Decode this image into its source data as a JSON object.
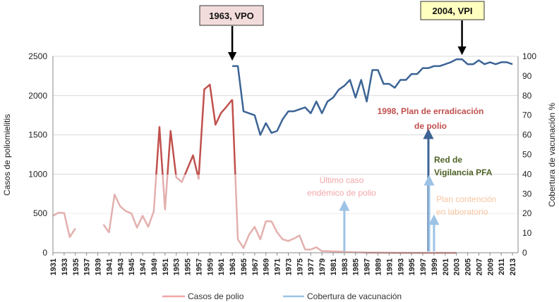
{
  "chart_data": {
    "type": "line",
    "title": "",
    "xlabel": "",
    "ylabel_left": "Casos de poliomielitis",
    "ylabel_right": "Cobertura de vacunación %",
    "x_ticks": [
      "1931",
      "1933",
      "1935",
      "1937",
      "1939",
      "1941",
      "1943",
      "1945",
      "1947",
      "1949",
      "1951",
      "1953",
      "1955",
      "1957",
      "1959",
      "1961",
      "1963",
      "1965",
      "1967",
      "1969",
      "1971",
      "1973",
      "1975",
      "1977",
      "1979",
      "1981",
      "1983",
      "1985",
      "1987",
      "1989",
      "1991",
      "1993",
      "1995",
      "1997",
      "1999",
      "2001",
      "2003",
      "2005",
      "2007",
      "2009",
      "2011",
      "2013"
    ],
    "ylim_left": [
      0,
      2500
    ],
    "y_ticks_left": [
      0,
      500,
      1000,
      1500,
      2000,
      2500
    ],
    "ylim_right": [
      0,
      100
    ],
    "y_ticks_right": [
      0,
      10,
      20,
      30,
      40,
      50,
      60,
      70,
      80,
      90,
      100
    ],
    "grid": "horizontal",
    "legend_position": "bottom",
    "series": [
      {
        "name": "Casos de polio",
        "axis": "left",
        "color": "#c0504d",
        "faded_color": "#f4a6aa",
        "segments": [
          {
            "x": [
              1931,
              1932,
              1933,
              1934,
              1935,
              1936
            ],
            "y": [
              470,
              510,
              505,
              200,
              310,
              null
            ]
          },
          {
            "x": [
              1940,
              1941,
              1942,
              1943,
              1944,
              1945,
              1946,
              1947,
              1948,
              1949,
              1950,
              1951,
              1952,
              1953,
              1954,
              1955,
              1956,
              1957,
              1958,
              1959,
              1960,
              1961,
              1962,
              1963
            ],
            "y": [
              360,
              260,
              740,
              590,
              530,
              500,
              320,
              470,
              330,
              530,
              1600,
              550,
              1550,
              960,
              900,
              1070,
              1240,
              940,
              2080,
              2140,
              1630,
              1780,
              1860,
              1950
            ]
          },
          {
            "x": [
              1963,
              1964,
              1965,
              1966,
              1967,
              1968,
              1969,
              1970,
              1971,
              1972,
              1973,
              1974,
              1975,
              1976,
              1977,
              1978,
              1979,
              1980,
              1981,
              1982,
              1983,
              1984,
              1985,
              1986,
              1987,
              1988,
              1989,
              1990,
              1991,
              1992,
              1993,
              1994,
              1995,
              1996,
              1997,
              1998,
              1999,
              2000,
              2001,
              2002,
              2003
            ],
            "y": [
              1950,
              170,
              60,
              230,
              330,
              170,
              400,
              400,
              260,
              170,
              150,
              180,
              220,
              40,
              40,
              70,
              20,
              20,
              15,
              15,
              10,
              8,
              5,
              5,
              3,
              3,
              2,
              1,
              1,
              0,
              0,
              0,
              0,
              0,
              0,
              0,
              0,
              0,
              0,
              0,
              0
            ]
          }
        ]
      },
      {
        "name": "Cobertura de vacunación",
        "axis": "right",
        "color": "#3c6496",
        "segments": [
          {
            "x": [
              1963,
              1964,
              1965,
              1966,
              1967,
              1968,
              1969,
              1970,
              1971,
              1972,
              1973,
              1974,
              1975,
              1976,
              1977,
              1978,
              1979,
              1980,
              1981,
              1982,
              1983,
              1984,
              1985,
              1986,
              1987,
              1988,
              1989,
              1990,
              1991,
              1992,
              1993,
              1994,
              1995,
              1996,
              1997,
              1998,
              1999,
              2000,
              2001,
              2002,
              2003,
              2004,
              2005,
              2006,
              2007,
              2008,
              2009,
              2010,
              2011,
              2012,
              2013
            ],
            "y": [
              95,
              95,
              72,
              71,
              70,
              60,
              66,
              61,
              62,
              68,
              72,
              72,
              73,
              74,
              71,
              77,
              71,
              77,
              79,
              83,
              85,
              88,
              79,
              88,
              77,
              93,
              93,
              86,
              86,
              84,
              88,
              88,
              91,
              91,
              94,
              94,
              95,
              95,
              96,
              97,
              98.5,
              98.5,
              96,
              96,
              98,
              96,
              97,
              96,
              97,
              97,
              96
            ]
          }
        ]
      }
    ],
    "annotations": [
      {
        "text": "1963, VPO",
        "x": 1963,
        "type": "callout"
      },
      {
        "text": "2004, VPI",
        "x": 2004,
        "type": "callout"
      },
      {
        "text_lines": [
          "1998, Plan de erradicación",
          "de polio"
        ],
        "x": 1998,
        "color": "#c0504d"
      },
      {
        "text_lines": [
          "Red de",
          "Vigilancia PFA"
        ],
        "x": 1998,
        "color": "#4f6228"
      },
      {
        "text_lines": [
          "Último caso",
          "endémico  de polio"
        ],
        "x": 1983,
        "color": "#f4a6aa"
      },
      {
        "text_lines": [
          "Plan contención",
          "en laboratorio"
        ],
        "x": 1999,
        "color": "#f8c4a0"
      }
    ]
  }
}
